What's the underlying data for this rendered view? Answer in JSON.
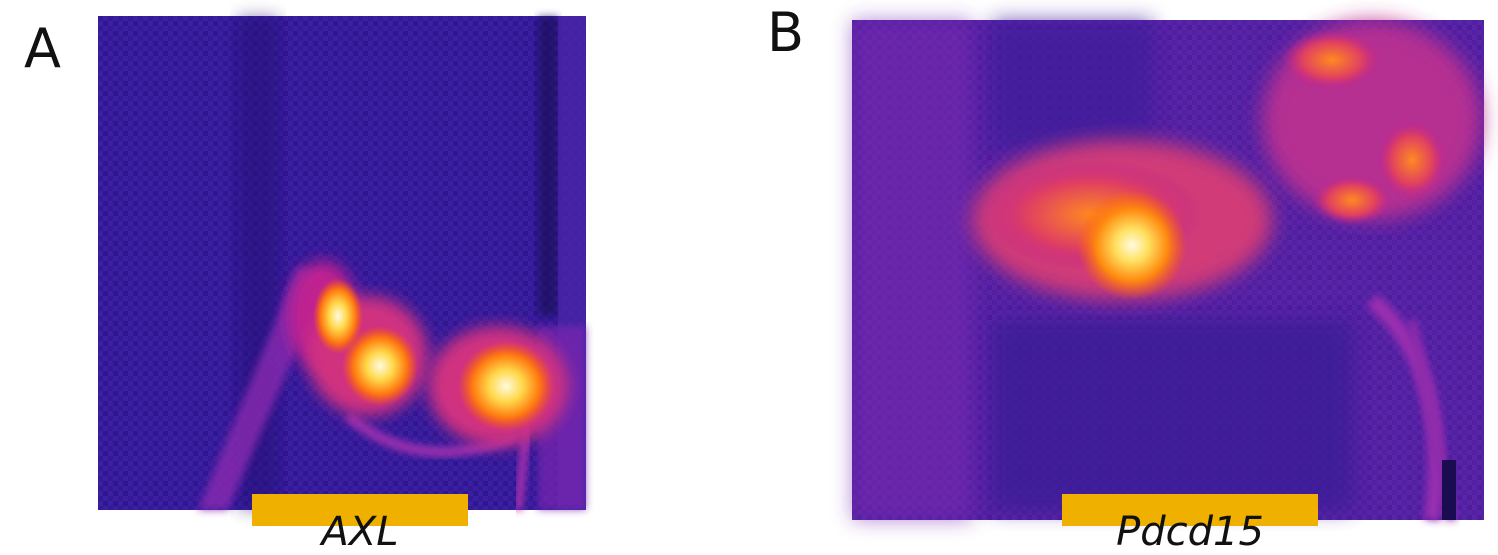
{
  "panels": [
    {
      "letter": "A",
      "caption": "AXL",
      "image": "thermal-image-a"
    },
    {
      "letter": "B",
      "caption": "Pdcd15",
      "image": "thermal-image-b"
    }
  ],
  "colors": {
    "background_cold": "#3a1a9a",
    "warm": "#c020a0",
    "hot": "#ff6a00",
    "hottest": "#fff0a0",
    "caption_bg": "#f0b000"
  }
}
